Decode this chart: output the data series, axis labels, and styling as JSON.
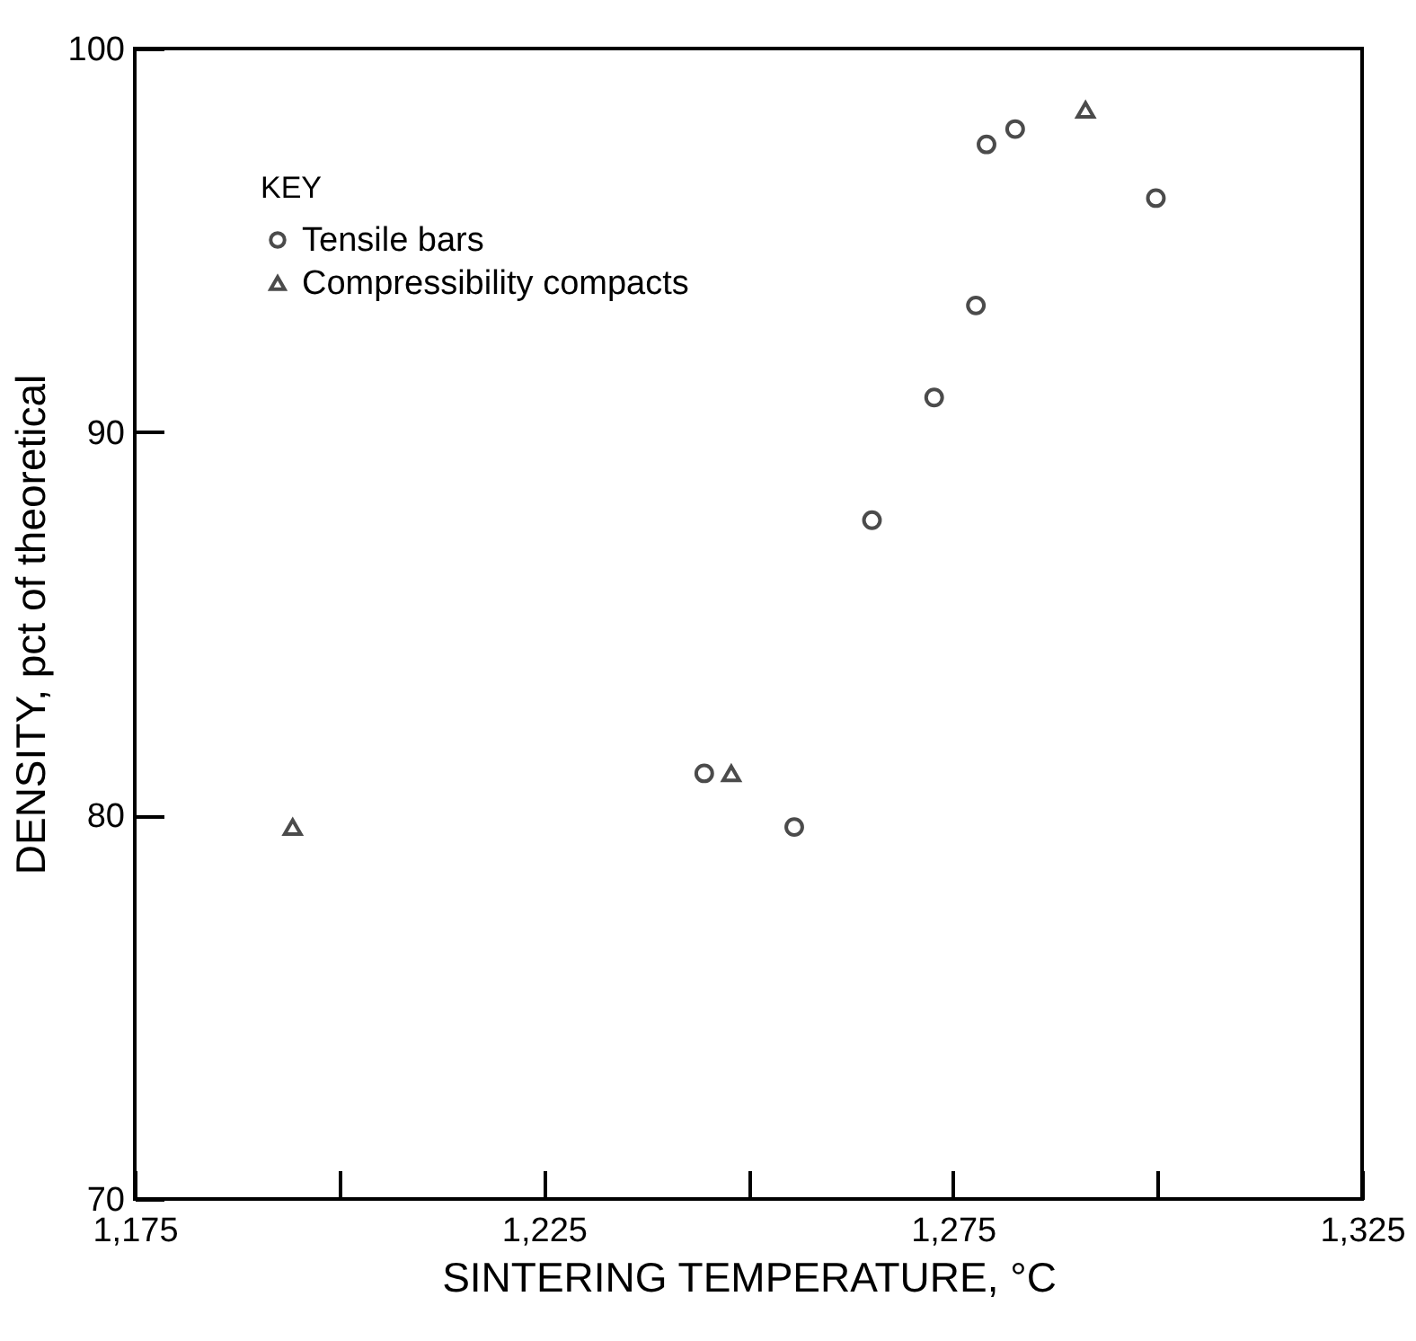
{
  "chart_data": {
    "type": "scatter",
    "xlabel": "SINTERING TEMPERATURE, °C",
    "ylabel": "DENSITY, pct of theoretical",
    "legend_title": "KEY",
    "legend": "top left",
    "grid": false,
    "xlim": [
      1175,
      1325
    ],
    "xticks": [
      {
        "value": 1175,
        "label": "1,175"
      },
      {
        "value": 1200,
        "label": null
      },
      {
        "value": 1225,
        "label": "1,225"
      },
      {
        "value": 1250,
        "label": null
      },
      {
        "value": 1275,
        "label": "1,275"
      },
      {
        "value": 1300,
        "label": null
      },
      {
        "value": 1325,
        "label": "1,325"
      }
    ],
    "ylim": [
      70,
      100
    ],
    "yticks": [
      70,
      80,
      90,
      100
    ],
    "series": [
      {
        "name": "Tensile bars",
        "color": "#000000",
        "marker": "circle",
        "x": [
          1244.6,
          1255.6,
          1265.1,
          1272.7,
          1277.8,
          1279.1,
          1282.6,
          1299.8
        ],
        "values": [
          81.1,
          79.7,
          87.7,
          90.9,
          93.3,
          97.5,
          97.9,
          96.1
        ]
      },
      {
        "name": "Compressibility compacts",
        "color": "#000000",
        "marker": "triangle",
        "x": [
          1194.3,
          1247.9,
          1291.2
        ],
        "values": [
          79.7,
          81.1,
          98.4
        ]
      }
    ]
  }
}
